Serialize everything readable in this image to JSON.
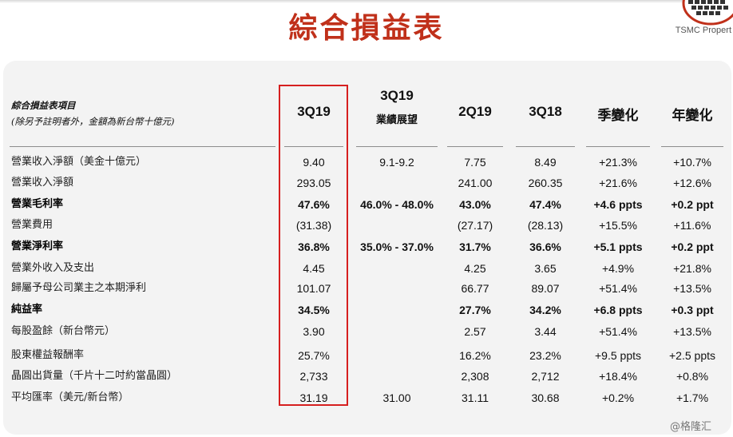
{
  "page": {
    "title": "綜合損益表",
    "logo_text": "TSMC Propert",
    "watermark": "@格隆汇"
  },
  "table": {
    "item_header": "綜合損益表項目",
    "item_note": "(除另予註明者外，金額為新台幣十億元)",
    "columns": [
      {
        "line1": "3Q19",
        "line2": ""
      },
      {
        "line1": "3Q19",
        "line2": "業績展望"
      },
      {
        "line1": "2Q19",
        "line2": ""
      },
      {
        "line1": "3Q18",
        "line2": ""
      },
      {
        "line1": "季變化",
        "line2": ""
      },
      {
        "line1": "年變化",
        "line2": ""
      }
    ],
    "rows": [
      {
        "label": "營業收入淨額（美金十億元）",
        "bold": false,
        "values": [
          "9.40",
          "9.1-9.2",
          "7.75",
          "8.49",
          "+21.3%",
          "+10.7%"
        ]
      },
      {
        "label": "營業收入淨額",
        "bold": false,
        "values": [
          "293.05",
          "",
          "241.00",
          "260.35",
          "+21.6%",
          "+12.6%"
        ]
      },
      {
        "label": "營業毛利率",
        "bold": true,
        "values": [
          "47.6%",
          "46.0% - 48.0%",
          "43.0%",
          "47.4%",
          "+4.6 ppts",
          "+0.2 ppt"
        ]
      },
      {
        "label": "營業費用",
        "bold": false,
        "values": [
          "(31.38)",
          "",
          "(27.17)",
          "(28.13)",
          "+15.5%",
          "+11.6%"
        ]
      },
      {
        "label": "營業淨利率",
        "bold": true,
        "values": [
          "36.8%",
          "35.0% - 37.0%",
          "31.7%",
          "36.6%",
          "+5.1 ppts",
          "+0.2 ppt"
        ]
      },
      {
        "label": "營業外收入及支出",
        "bold": false,
        "values": [
          "4.45",
          "",
          "4.25",
          "3.65",
          "+4.9%",
          "+21.8%"
        ]
      },
      {
        "label": "歸屬予母公司業主之本期淨利",
        "bold": false,
        "values": [
          "101.07",
          "",
          "66.77",
          "89.07",
          "+51.4%",
          "+13.5%"
        ]
      },
      {
        "label": "純益率",
        "bold": true,
        "values": [
          "34.5%",
          "",
          "27.7%",
          "34.2%",
          "+6.8 ppts",
          "+0.3 ppt"
        ]
      },
      {
        "label": "每股盈餘（新台幣元）",
        "bold": false,
        "values": [
          "3.90",
          "",
          "2.57",
          "3.44",
          "+51.4%",
          "+13.5%"
        ]
      },
      {
        "label": "股東權益報酬率",
        "bold": false,
        "values": [
          "25.7%",
          "",
          "16.2%",
          "23.2%",
          "+9.5 ppts",
          "+2.5 ppts"
        ]
      },
      {
        "label": "晶圓出貨量（千片十二吋約當晶圓）",
        "bold": false,
        "values": [
          "2,733",
          "",
          "2,308",
          "2,712",
          "+18.4%",
          "+0.8%"
        ]
      },
      {
        "label": "平均匯率（美元/新台幣）",
        "bold": false,
        "values": [
          "31.19",
          "31.00",
          "31.11",
          "30.68",
          "+0.2%",
          "+1.7%"
        ]
      }
    ]
  },
  "colors": {
    "title": "#c0301a",
    "highlight_box": "#d61f1f",
    "panel_bg": "#f3f3f3"
  }
}
